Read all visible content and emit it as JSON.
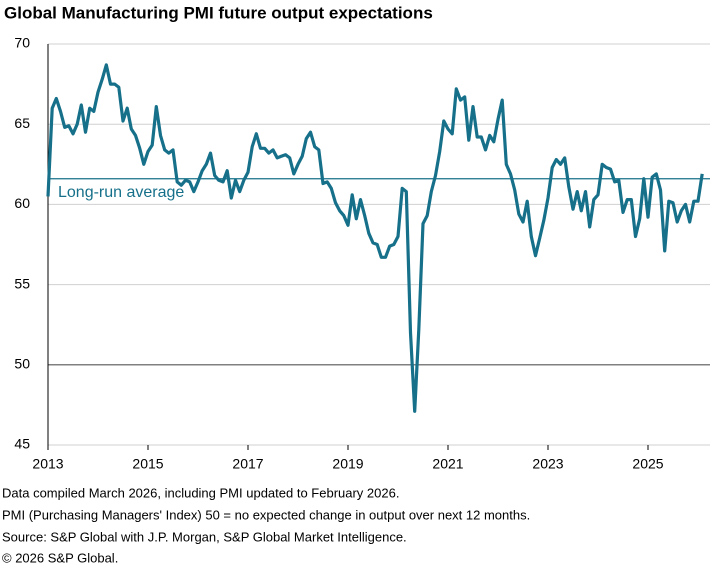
{
  "chart_data": {
    "type": "line",
    "title": "Global Manufacturing PMI future output expectations",
    "notes": [
      "Data compiled March 2026, including PMI updated to February 2026.",
      "PMI (Purchasing Managers' Index) 50 = no expected change in output over next 12 months.",
      "Source: S&P Global with J.P. Morgan, S&P Global Market Intelligence.",
      "© 2026 S&P Global."
    ],
    "x": [
      2013,
      2013.083,
      2013.167,
      2013.25,
      2013.333,
      2013.417,
      2013.5,
      2013.583,
      2013.667,
      2013.75,
      2013.833,
      2013.917,
      2014,
      2014.083,
      2014.167,
      2014.25,
      2014.333,
      2014.417,
      2014.5,
      2014.583,
      2014.667,
      2014.75,
      2014.833,
      2014.917,
      2015,
      2015.083,
      2015.167,
      2015.25,
      2015.333,
      2015.417,
      2015.5,
      2015.583,
      2015.667,
      2015.75,
      2015.833,
      2015.917,
      2016,
      2016.083,
      2016.167,
      2016.25,
      2016.333,
      2016.417,
      2016.5,
      2016.583,
      2016.667,
      2016.75,
      2016.833,
      2016.917,
      2017,
      2017.083,
      2017.167,
      2017.25,
      2017.333,
      2017.417,
      2017.5,
      2017.583,
      2017.667,
      2017.75,
      2017.833,
      2017.917,
      2018,
      2018.083,
      2018.167,
      2018.25,
      2018.333,
      2018.417,
      2018.5,
      2018.583,
      2018.667,
      2018.75,
      2018.833,
      2018.917,
      2019,
      2019.083,
      2019.167,
      2019.25,
      2019.333,
      2019.417,
      2019.5,
      2019.583,
      2019.667,
      2019.75,
      2019.833,
      2019.917,
      2020,
      2020.083,
      2020.167,
      2020.25,
      2020.333,
      2020.417,
      2020.5,
      2020.583,
      2020.667,
      2020.75,
      2020.833,
      2020.917,
      2021,
      2021.083,
      2021.167,
      2021.25,
      2021.333,
      2021.417,
      2021.5,
      2021.583,
      2021.667,
      2021.75,
      2021.833,
      2021.917,
      2022,
      2022.083,
      2022.167,
      2022.25,
      2022.333,
      2022.417,
      2022.5,
      2022.583,
      2022.667,
      2022.75,
      2022.833,
      2022.917,
      2023,
      2023.083,
      2023.167,
      2023.25,
      2023.333,
      2023.417,
      2023.5,
      2023.583,
      2023.667,
      2023.75,
      2023.833,
      2023.917,
      2024,
      2024.083,
      2024.167,
      2024.25,
      2024.333,
      2024.417,
      2024.5,
      2024.583,
      2024.667,
      2024.75,
      2024.833,
      2024.917,
      2025,
      2025.083,
      2025.167,
      2025.25,
      2025.333,
      2025.417,
      2025.5,
      2025.583,
      2025.667,
      2025.75,
      2025.833,
      2025.917,
      2026,
      2026.083
    ],
    "series": [
      {
        "color": "#16708a",
        "values": [
          60.5,
          66,
          66.6,
          65.8,
          64.8,
          64.9,
          64.4,
          65,
          66.2,
          64.5,
          66,
          65.8,
          67,
          67.8,
          68.7,
          67.5,
          67.5,
          67.3,
          65.2,
          66,
          64.7,
          64.3,
          63.5,
          62.5,
          63.3,
          63.7,
          66.1,
          64.3,
          63.4,
          63.2,
          63.4,
          61.4,
          61.2,
          61.5,
          61.4,
          60.8,
          61.4,
          62.1,
          62.5,
          63.2,
          61.8,
          61.5,
          61.4,
          62.1,
          60.4,
          61.5,
          60.8,
          61.5,
          62,
          63.6,
          64.4,
          63.5,
          63.5,
          63.2,
          63.4,
          62.9,
          63,
          63.1,
          62.9,
          61.9,
          62.5,
          63,
          64.1,
          64.5,
          63.6,
          63.4,
          61.3,
          61.4,
          61,
          60.1,
          59.6,
          59.3,
          58.7,
          60.6,
          59.1,
          60.3,
          59.3,
          58.2,
          57.6,
          57.5,
          56.7,
          56.7,
          57.4,
          57.5,
          58,
          61,
          60.8,
          52,
          47.1,
          52.2,
          58.8,
          59.3,
          60.8,
          61.8,
          63.3,
          65.2,
          64.7,
          64.4,
          67.2,
          66.5,
          66.7,
          64,
          66.1,
          64.2,
          64.2,
          63.4,
          64.3,
          63.9,
          65.3,
          66.5,
          62.5,
          61.9,
          60.9,
          59.4,
          58.9,
          60.2,
          58,
          56.8,
          57.9,
          59,
          60.4,
          62.3,
          62.8,
          62.5,
          62.9,
          61.1,
          59.7,
          60.8,
          59.6,
          60.8,
          58.6,
          60.3,
          60.6,
          62.5,
          62.3,
          62.2,
          61.4,
          61.5,
          59.5,
          60.3,
          60.3,
          58,
          59.1,
          61.6,
          59.2,
          61.7,
          61.9,
          60.9,
          57.1,
          60.2,
          60.1,
          58.9,
          59.6,
          60,
          58.9,
          60.2,
          60.2,
          61.9
        ]
      }
    ],
    "reference_line": {
      "value": 61.6,
      "label": "Long-run average",
      "color": "#16708a"
    },
    "highlight_y": 50,
    "xlim": [
      2013,
      2026.24
    ],
    "xticks": [
      2013,
      2015,
      2017,
      2019,
      2021,
      2023,
      2025
    ],
    "ylim": [
      45,
      70
    ],
    "yticks": [
      45,
      50,
      55,
      60,
      65,
      70
    ],
    "grid": true
  }
}
